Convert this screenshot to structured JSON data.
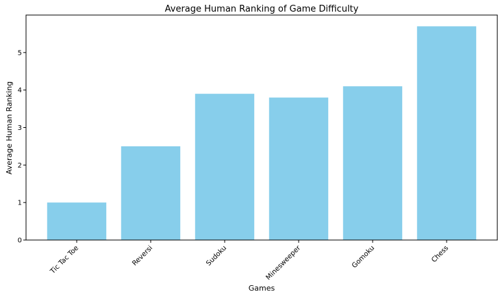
{
  "chart_data": {
    "type": "bar",
    "title": "Average Human Ranking of Game Difficulty",
    "xlabel": "Games",
    "ylabel": "Average Human Ranking",
    "categories": [
      "Tic Tac Toe",
      "Reversi",
      "Sudoku",
      "Minesweeper",
      "Gomoku",
      "Chess"
    ],
    "values": [
      1.0,
      2.5,
      3.9,
      3.8,
      4.1,
      5.7
    ],
    "ylim": [
      0,
      6
    ],
    "yticks": [
      0,
      1,
      2,
      3,
      4,
      5
    ],
    "grid": false,
    "bar_color": "#87ceeb"
  }
}
